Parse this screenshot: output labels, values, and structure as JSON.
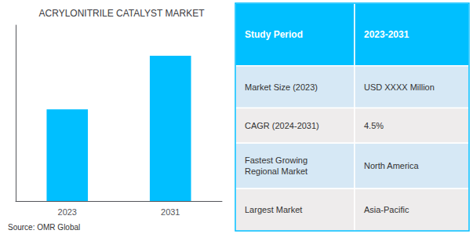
{
  "chart_data": {
    "type": "bar",
    "title": "ACRYLONITRILE CATALYST MARKET",
    "categories": [
      "2023",
      "2031"
    ],
    "values": [
      0.48,
      0.76
    ],
    "color": "#00bfff",
    "ylim": [
      0,
      0.92
    ],
    "grid": false,
    "tick_labels": "x",
    "annotations": [
      "Source: OMR Global"
    ],
    "table": {
      "headers": [
        "Study Period",
        "2023-2031"
      ],
      "rows": [
        [
          "Market Size (2023)",
          "USD XXXX Million"
        ],
        [
          "CAGR (2024-2031)",
          "4.5%"
        ],
        [
          "Fastest Growing\nRegional Market",
          "North America"
        ],
        [
          "Largest Market",
          "Asia-Pacific"
        ]
      ],
      "color": "#00bfff"
    }
  }
}
